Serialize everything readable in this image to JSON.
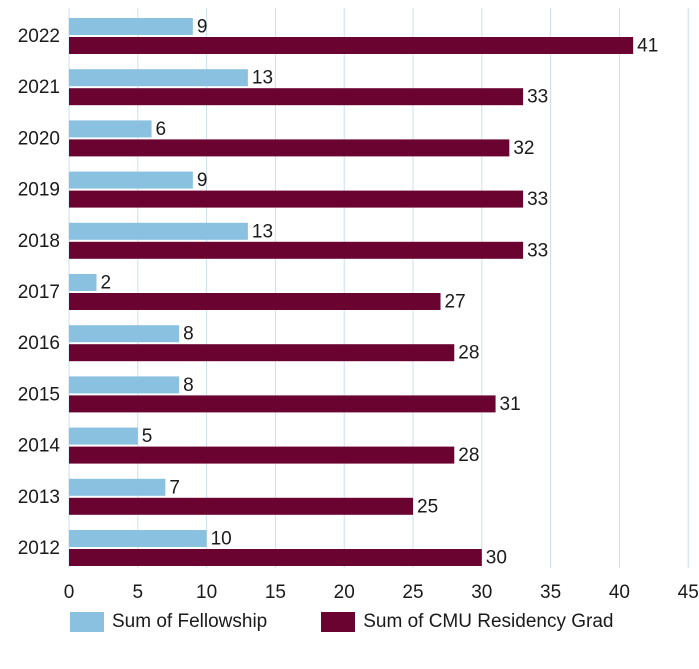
{
  "chart_data": {
    "type": "bar",
    "orientation": "horizontal",
    "title": "",
    "xlabel": "",
    "ylabel": "",
    "categories": [
      "2022",
      "2021",
      "2020",
      "2019",
      "2018",
      "2017",
      "2016",
      "2015",
      "2014",
      "2013",
      "2012"
    ],
    "series": [
      {
        "name": "Sum of Fellowship",
        "color": "#8bc1e0",
        "values": [
          9,
          13,
          6,
          9,
          13,
          2,
          8,
          8,
          5,
          7,
          10
        ]
      },
      {
        "name": "Sum of CMU Residency Grad",
        "color": "#6b0330",
        "values": [
          41,
          33,
          32,
          33,
          33,
          27,
          28,
          31,
          28,
          25,
          30
        ]
      }
    ],
    "xlim": [
      0,
      45
    ],
    "xticks": [
      "0",
      "5",
      "10",
      "15",
      "20",
      "25",
      "30",
      "35",
      "40",
      "45"
    ],
    "grid": true,
    "gridline_color": "#c8dff0",
    "legend_position": "bottom"
  }
}
